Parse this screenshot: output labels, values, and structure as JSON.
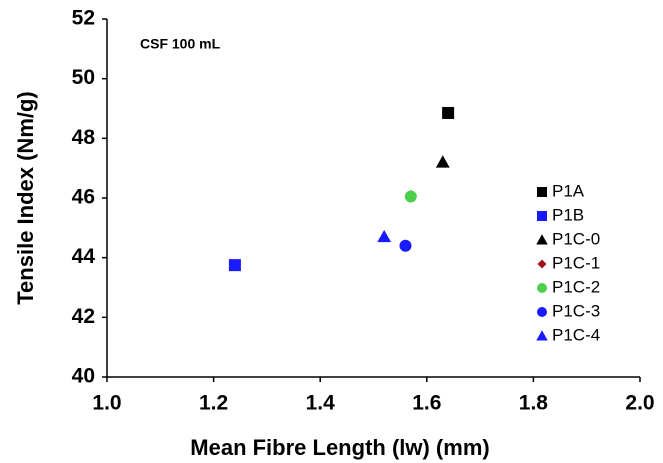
{
  "chart_data": {
    "type": "scatter",
    "x_label": "Mean Fibre Length (lw) (mm)",
    "y_label": "Tensile Index (Nm/g)",
    "annotation": "CSF 100 mL",
    "xlim": [
      1.0,
      2.0
    ],
    "xticks": [
      {
        "value": 1.0,
        "label": "1.0"
      },
      {
        "value": 1.2,
        "label": "1.2"
      },
      {
        "value": 1.4,
        "label": "1.4"
      },
      {
        "value": 1.6,
        "label": "1.6"
      },
      {
        "value": 1.8,
        "label": "1.8"
      },
      {
        "value": 2.0,
        "label": "2.0"
      }
    ],
    "ylim": [
      40,
      52
    ],
    "yticks": [
      40,
      42,
      44,
      46,
      48,
      50,
      52
    ],
    "grid": false,
    "legend": "right",
    "series": [
      {
        "name": "P1A",
        "color": "#000000",
        "marker": "square",
        "x": [
          1.64
        ],
        "values": [
          48.85
        ]
      },
      {
        "name": "P1B",
        "color": "#1a1aff",
        "marker": "square",
        "x": [
          1.24
        ],
        "values": [
          43.75
        ]
      },
      {
        "name": "P1C-0",
        "color": "#000000",
        "marker": "triangle",
        "x": [
          1.63
        ],
        "values": [
          47.2
        ]
      },
      {
        "name": "P1C-1",
        "color": "#a0141e",
        "marker": "diamond",
        "x": [
          1.57
        ],
        "values": [
          46.1
        ]
      },
      {
        "name": "P1C-2",
        "color": "#4cd04c",
        "marker": "circle",
        "x": [
          1.57
        ],
        "values": [
          46.05
        ]
      },
      {
        "name": "P1C-3",
        "color": "#1a1aff",
        "marker": "circle",
        "x": [
          1.56
        ],
        "values": [
          44.4
        ]
      },
      {
        "name": "P1C-4",
        "color": "#1a1aff",
        "marker": "triangle",
        "x": [
          1.52
        ],
        "values": [
          44.7
        ]
      }
    ]
  }
}
